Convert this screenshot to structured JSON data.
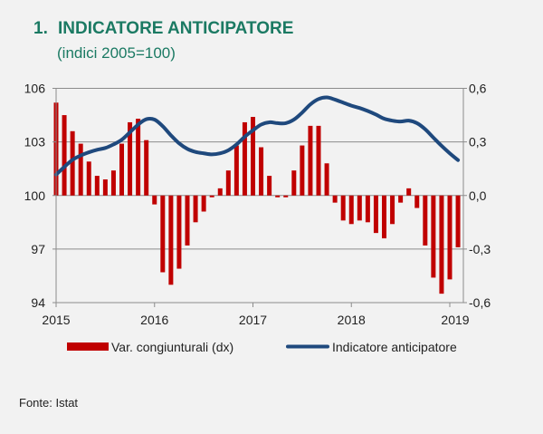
{
  "chart_data": {
    "type": "bar+line",
    "title_number": "1.",
    "title": "INDICATORE ANTICIPATORE",
    "subtitle": "(indici 2005=100)",
    "source": "Fonte: Istat",
    "x_tick_labels": [
      "2015",
      "2016",
      "2017",
      "2018",
      "2019"
    ],
    "x_start": "2015-01",
    "x_end": "2019-02",
    "y_left": {
      "lim": [
        94,
        106
      ],
      "ticks": [
        106,
        103,
        100,
        97,
        94
      ],
      "tick_labels": [
        "106",
        "103",
        "100",
        "97",
        "94"
      ]
    },
    "y_right": {
      "lim": [
        -0.6,
        0.6
      ],
      "ticks": [
        0.6,
        0.3,
        0.0,
        -0.3,
        -0.6
      ],
      "tick_labels": [
        "0,6",
        "0,3",
        "0,0",
        "-0,3",
        "-0,6"
      ]
    },
    "grid": "horizontal",
    "legend_position": "bottom",
    "series": [
      {
        "name": "Var. congiunturali (dx)",
        "type": "bar",
        "axis": "right",
        "color": "#c00000",
        "values": [
          0.52,
          0.45,
          0.36,
          0.29,
          0.19,
          0.11,
          0.09,
          0.14,
          0.29,
          0.41,
          0.43,
          0.31,
          -0.05,
          -0.43,
          -0.5,
          -0.41,
          -0.28,
          -0.15,
          -0.09,
          -0.01,
          0.04,
          0.14,
          0.28,
          0.41,
          0.44,
          0.27,
          0.11,
          -0.01,
          -0.01,
          0.14,
          0.28,
          0.39,
          0.39,
          0.18,
          -0.04,
          -0.14,
          -0.16,
          -0.14,
          -0.15,
          -0.21,
          -0.24,
          -0.16,
          -0.04,
          0.04,
          -0.07,
          -0.28,
          -0.46,
          -0.55,
          -0.47,
          -0.29
        ]
      },
      {
        "name": "Indicatore anticipatore",
        "type": "line",
        "axis": "left",
        "color": "#1f497d",
        "values": [
          101.17,
          101.6,
          102.0,
          102.24,
          102.42,
          102.56,
          102.66,
          102.86,
          103.12,
          103.54,
          103.97,
          104.27,
          104.25,
          103.88,
          103.37,
          102.92,
          102.61,
          102.44,
          102.36,
          102.3,
          102.36,
          102.53,
          102.86,
          103.29,
          103.65,
          103.97,
          104.1,
          104.05,
          104.05,
          104.25,
          104.64,
          105.1,
          105.4,
          105.49,
          105.37,
          105.2,
          105.03,
          104.9,
          104.73,
          104.53,
          104.3,
          104.19,
          104.14,
          104.19,
          104.05,
          103.71,
          103.24,
          102.78,
          102.36,
          101.98
        ]
      }
    ]
  }
}
